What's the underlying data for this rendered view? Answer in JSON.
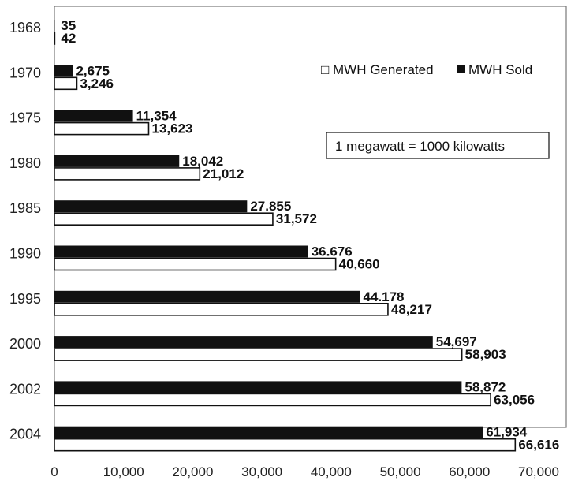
{
  "chart_data": {
    "type": "bar",
    "orientation": "horizontal",
    "title": "",
    "xlabel": "",
    "ylabel": "",
    "categories": [
      "1968",
      "1970",
      "1975",
      "1980",
      "1985",
      "1990",
      "1995",
      "2000",
      "2002",
      "2004"
    ],
    "series": [
      {
        "name": "MWH Sold",
        "color": "#111111",
        "values": [
          35,
          2675,
          11354,
          18042,
          27855,
          36676,
          44178,
          54697,
          58872,
          61934
        ],
        "labels": [
          "35",
          "2,675",
          "11,354",
          "18,042",
          "27.855",
          "36.676",
          "44.178",
          "54,697",
          "58,872",
          "61,934"
        ]
      },
      {
        "name": "MWH Generated",
        "color": "#ffffff",
        "values": [
          42,
          3246,
          13623,
          21012,
          31572,
          40660,
          48217,
          58903,
          63056,
          66616
        ],
        "labels": [
          "42",
          "3,246",
          "13,623",
          "21,012",
          "31,572",
          "40,660",
          "48,217",
          "58,903",
          "63,056",
          "66,616"
        ]
      }
    ],
    "xlim": [
      0,
      70000
    ],
    "x_ticks": [
      "0",
      "10,000",
      "20,000",
      "30,000",
      "40,000",
      "50,000",
      "60,000",
      "70,000"
    ],
    "legend": {
      "position": "top-right",
      "generated_label": "MWH Generated",
      "sold_label": "MWH Sold"
    },
    "annotation": "1 megawatt = 1000 kilowatts",
    "grid": false
  }
}
